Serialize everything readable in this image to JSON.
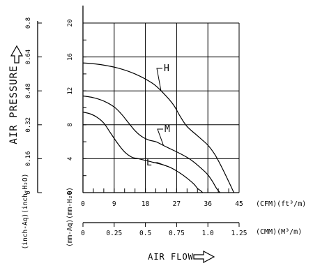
{
  "chart_data": {
    "type": "line",
    "title": "",
    "xlabel": "AIR FLOW",
    "ylabel": "AIR PRESSURE",
    "x_axes": [
      {
        "unit": "(CFM)(ft³/m)",
        "range": [
          0,
          45
        ],
        "ticks": [
          0,
          9,
          18,
          27,
          36,
          45
        ],
        "tick_labels": [
          "0",
          "9",
          "18",
          "27",
          "36",
          "45"
        ]
      },
      {
        "unit": "(CMM)(M³/m)",
        "range": [
          0,
          1.25
        ],
        "ticks": [
          0,
          0.25,
          0.5,
          0.75,
          1.0,
          1.25
        ],
        "tick_labels": [
          "0",
          "0.25",
          "0.5",
          "0.75",
          "1.0",
          "1.25"
        ]
      }
    ],
    "y_axes": [
      {
        "unit": "(inch-Aq)(inch-H₂O)",
        "range": [
          0,
          0.8
        ],
        "ticks": [
          0,
          0.16,
          0.32,
          0.48,
          0.64,
          0.8
        ],
        "tick_labels": [
          "0",
          "0.16",
          "0.32",
          "0.48",
          "0.64",
          "0.8"
        ]
      },
      {
        "unit": "(mm-Aq)(mm-H₂O)",
        "range": [
          0,
          20
        ],
        "ticks": [
          0,
          4,
          8,
          12,
          16,
          20
        ],
        "tick_labels": [
          "0",
          "4",
          "8",
          "12",
          "16",
          "20"
        ]
      }
    ],
    "grid": true,
    "series": [
      {
        "name": "H",
        "x": [
          0,
          5,
          10,
          15,
          20,
          23,
          26,
          28,
          30,
          33,
          36,
          38,
          40,
          42,
          43.5
        ],
        "y": [
          15.3,
          15.1,
          14.7,
          14.0,
          12.9,
          11.8,
          10.4,
          9.0,
          7.8,
          6.7,
          5.6,
          4.5,
          3.0,
          1.3,
          0
        ]
      },
      {
        "name": "M",
        "x": [
          0,
          3,
          6,
          9,
          11,
          13,
          15,
          17,
          19,
          21,
          23,
          25,
          28,
          31,
          34,
          36,
          37.5,
          38.5,
          39.5
        ],
        "y": [
          11.4,
          11.2,
          10.8,
          10.1,
          9.3,
          8.3,
          7.3,
          6.6,
          6.2,
          6.0,
          5.6,
          5.2,
          4.6,
          3.9,
          2.9,
          2.1,
          1.2,
          0.5,
          0
        ]
      },
      {
        "name": "L",
        "x": [
          0,
          2,
          4,
          6,
          8,
          10,
          12,
          14,
          16,
          18,
          20,
          22,
          25,
          28,
          30,
          32,
          33,
          34,
          34.5
        ],
        "y": [
          9.5,
          9.3,
          8.9,
          8.2,
          7.0,
          5.8,
          4.8,
          4.2,
          4.0,
          3.8,
          3.6,
          3.4,
          3.0,
          2.3,
          1.7,
          1.0,
          0.5,
          0.2,
          0
        ]
      }
    ]
  }
}
